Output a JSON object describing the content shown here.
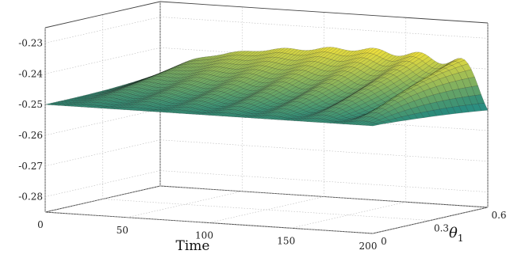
{
  "chart_data": {
    "type": "surface",
    "xlabel": "Time",
    "ylabel_symbol": "θ",
    "ylabel_subscript": "1",
    "zlabel": "",
    "xlim": [
      0,
      200
    ],
    "ylim": [
      0,
      0.6
    ],
    "zlim": [
      -0.285,
      -0.225
    ],
    "x_ticks": [
      "0",
      "50",
      "100",
      "150",
      "200"
    ],
    "y_ticks": [
      "0",
      "0.3",
      "0.6"
    ],
    "z_ticks": [
      "-0.23",
      "-0.24",
      "-0.25",
      "-0.26",
      "-0.27",
      "-0.28"
    ],
    "baseline": -0.25,
    "grid": true,
    "colormap": "parula",
    "peaks": [
      {
        "time": 23,
        "max": -0.2435,
        "min": -0.2505
      },
      {
        "time": 51,
        "max": -0.241,
        "min": -0.251
      },
      {
        "time": 79,
        "max": -0.239,
        "min": -0.252
      },
      {
        "time": 107,
        "max": -0.2375,
        "min": -0.253
      },
      {
        "time": 135,
        "max": -0.236,
        "min": -0.2555
      },
      {
        "time": 163,
        "max": -0.2345,
        "min": -0.26
      },
      {
        "time": 191,
        "max": -0.23,
        "min": -0.27
      }
    ],
    "colors": {
      "low": "#3ec3dd",
      "mid": "#2a8a7a",
      "high": "#f4e23a",
      "peak": "#d23c26",
      "mesh": "#000000"
    }
  }
}
